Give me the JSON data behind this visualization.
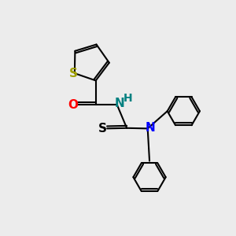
{
  "background_color": "#ececec",
  "atom_colors": {
    "S_thiophene": "#a0a000",
    "S_thio": "#000000",
    "O": "#ff0000",
    "N_nh": "#008080",
    "N": "#0000ff",
    "C": "#000000",
    "H": "#008080"
  },
  "figsize": [
    3.0,
    3.0
  ],
  "dpi": 100
}
